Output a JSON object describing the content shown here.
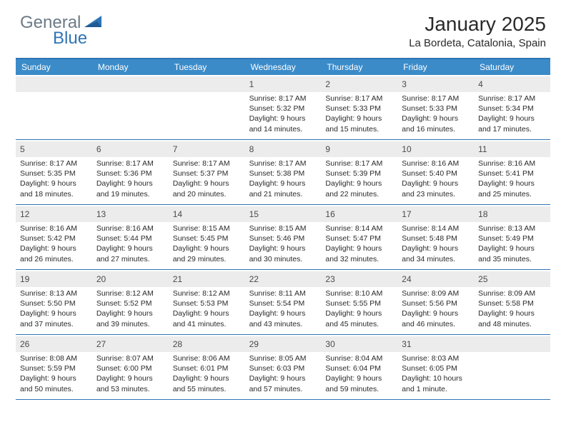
{
  "logo": {
    "general": "General",
    "blue": "Blue"
  },
  "title": "January 2025",
  "location": "La Bordeta, Catalonia, Spain",
  "colors": {
    "header_bar": "#3b8bc9",
    "rule": "#2f74b5",
    "daynum_bg": "#ececec",
    "logo_gray": "#6c7a86",
    "logo_blue": "#2f74b5",
    "text": "#2a2a2a"
  },
  "weekdays": [
    "Sunday",
    "Monday",
    "Tuesday",
    "Wednesday",
    "Thursday",
    "Friday",
    "Saturday"
  ],
  "weeks": [
    [
      null,
      null,
      null,
      {
        "n": "1",
        "sunrise": "8:17 AM",
        "sunset": "5:32 PM",
        "daylight": "9 hours and 14 minutes."
      },
      {
        "n": "2",
        "sunrise": "8:17 AM",
        "sunset": "5:33 PM",
        "daylight": "9 hours and 15 minutes."
      },
      {
        "n": "3",
        "sunrise": "8:17 AM",
        "sunset": "5:33 PM",
        "daylight": "9 hours and 16 minutes."
      },
      {
        "n": "4",
        "sunrise": "8:17 AM",
        "sunset": "5:34 PM",
        "daylight": "9 hours and 17 minutes."
      }
    ],
    [
      {
        "n": "5",
        "sunrise": "8:17 AM",
        "sunset": "5:35 PM",
        "daylight": "9 hours and 18 minutes."
      },
      {
        "n": "6",
        "sunrise": "8:17 AM",
        "sunset": "5:36 PM",
        "daylight": "9 hours and 19 minutes."
      },
      {
        "n": "7",
        "sunrise": "8:17 AM",
        "sunset": "5:37 PM",
        "daylight": "9 hours and 20 minutes."
      },
      {
        "n": "8",
        "sunrise": "8:17 AM",
        "sunset": "5:38 PM",
        "daylight": "9 hours and 21 minutes."
      },
      {
        "n": "9",
        "sunrise": "8:17 AM",
        "sunset": "5:39 PM",
        "daylight": "9 hours and 22 minutes."
      },
      {
        "n": "10",
        "sunrise": "8:16 AM",
        "sunset": "5:40 PM",
        "daylight": "9 hours and 23 minutes."
      },
      {
        "n": "11",
        "sunrise": "8:16 AM",
        "sunset": "5:41 PM",
        "daylight": "9 hours and 25 minutes."
      }
    ],
    [
      {
        "n": "12",
        "sunrise": "8:16 AM",
        "sunset": "5:42 PM",
        "daylight": "9 hours and 26 minutes."
      },
      {
        "n": "13",
        "sunrise": "8:16 AM",
        "sunset": "5:44 PM",
        "daylight": "9 hours and 27 minutes."
      },
      {
        "n": "14",
        "sunrise": "8:15 AM",
        "sunset": "5:45 PM",
        "daylight": "9 hours and 29 minutes."
      },
      {
        "n": "15",
        "sunrise": "8:15 AM",
        "sunset": "5:46 PM",
        "daylight": "9 hours and 30 minutes."
      },
      {
        "n": "16",
        "sunrise": "8:14 AM",
        "sunset": "5:47 PM",
        "daylight": "9 hours and 32 minutes."
      },
      {
        "n": "17",
        "sunrise": "8:14 AM",
        "sunset": "5:48 PM",
        "daylight": "9 hours and 34 minutes."
      },
      {
        "n": "18",
        "sunrise": "8:13 AM",
        "sunset": "5:49 PM",
        "daylight": "9 hours and 35 minutes."
      }
    ],
    [
      {
        "n": "19",
        "sunrise": "8:13 AM",
        "sunset": "5:50 PM",
        "daylight": "9 hours and 37 minutes."
      },
      {
        "n": "20",
        "sunrise": "8:12 AM",
        "sunset": "5:52 PM",
        "daylight": "9 hours and 39 minutes."
      },
      {
        "n": "21",
        "sunrise": "8:12 AM",
        "sunset": "5:53 PM",
        "daylight": "9 hours and 41 minutes."
      },
      {
        "n": "22",
        "sunrise": "8:11 AM",
        "sunset": "5:54 PM",
        "daylight": "9 hours and 43 minutes."
      },
      {
        "n": "23",
        "sunrise": "8:10 AM",
        "sunset": "5:55 PM",
        "daylight": "9 hours and 45 minutes."
      },
      {
        "n": "24",
        "sunrise": "8:09 AM",
        "sunset": "5:56 PM",
        "daylight": "9 hours and 46 minutes."
      },
      {
        "n": "25",
        "sunrise": "8:09 AM",
        "sunset": "5:58 PM",
        "daylight": "9 hours and 48 minutes."
      }
    ],
    [
      {
        "n": "26",
        "sunrise": "8:08 AM",
        "sunset": "5:59 PM",
        "daylight": "9 hours and 50 minutes."
      },
      {
        "n": "27",
        "sunrise": "8:07 AM",
        "sunset": "6:00 PM",
        "daylight": "9 hours and 53 minutes."
      },
      {
        "n": "28",
        "sunrise": "8:06 AM",
        "sunset": "6:01 PM",
        "daylight": "9 hours and 55 minutes."
      },
      {
        "n": "29",
        "sunrise": "8:05 AM",
        "sunset": "6:03 PM",
        "daylight": "9 hours and 57 minutes."
      },
      {
        "n": "30",
        "sunrise": "8:04 AM",
        "sunset": "6:04 PM",
        "daylight": "9 hours and 59 minutes."
      },
      {
        "n": "31",
        "sunrise": "8:03 AM",
        "sunset": "6:05 PM",
        "daylight": "10 hours and 1 minute."
      },
      null
    ]
  ],
  "labels": {
    "sunrise": "Sunrise: ",
    "sunset": "Sunset: ",
    "daylight": "Daylight: "
  }
}
